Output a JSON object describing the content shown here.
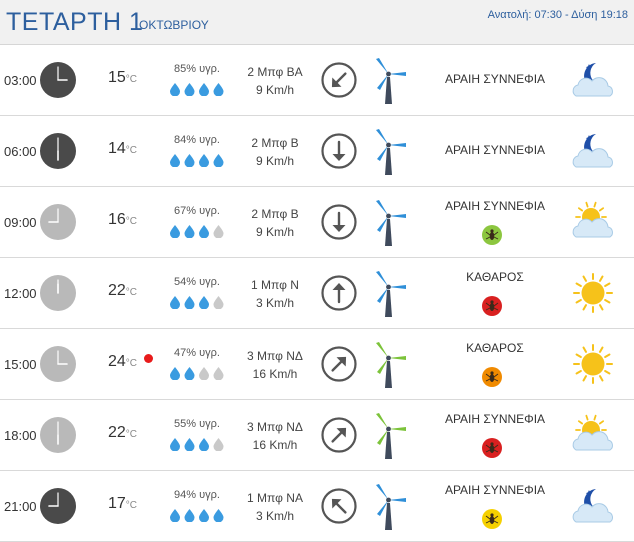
{
  "header": {
    "day": "ΤΕΤΑΡΤΗ 1",
    "month": "ΟΚΤΩΒΡΙΟΥ",
    "sun_times": "Ανατολή: 07:30 - Δύση 19:18"
  },
  "temp_unit": "°C",
  "rows": [
    {
      "time": "03:00",
      "clock": "night",
      "temp": "15",
      "humidity": "85% υγρ.",
      "drops": 4,
      "wind_force": "2 Μπφ ΒΑ",
      "wind_speed": "9 Km/h",
      "arrow_deg": 225,
      "turbine": "blue",
      "sky": "ΑΡΑΙΗ ΣΥΝΝΕΦΙΑ",
      "bug": null,
      "icon": "moon-cloud-icon",
      "hot": false
    },
    {
      "time": "06:00",
      "clock": "night",
      "temp": "14",
      "humidity": "84% υγρ.",
      "drops": 4,
      "wind_force": "2 Μπφ Β",
      "wind_speed": "9 Km/h",
      "arrow_deg": 180,
      "turbine": "blue",
      "sky": "ΑΡΑΙΗ ΣΥΝΝΕΦΙΑ",
      "bug": null,
      "icon": "moon-cloud-icon",
      "hot": false
    },
    {
      "time": "09:00",
      "clock": "day",
      "temp": "16",
      "humidity": "67% υγρ.",
      "drops": 3,
      "wind_force": "2 Μπφ Β",
      "wind_speed": "9 Km/h",
      "arrow_deg": 180,
      "turbine": "blue",
      "sky": "ΑΡΑΙΗ ΣΥΝΝΕΦΙΑ",
      "bug": "green",
      "icon": "sun-cloud-icon",
      "hot": false
    },
    {
      "time": "12:00",
      "clock": "day",
      "temp": "22",
      "humidity": "54% υγρ.",
      "drops": 3,
      "wind_force": "1 Μπφ Ν",
      "wind_speed": "3 Km/h",
      "arrow_deg": 0,
      "turbine": "blue",
      "sky": "ΚΑΘΑΡΟΣ",
      "bug": "red",
      "icon": "sun-icon",
      "hot": false
    },
    {
      "time": "15:00",
      "clock": "day",
      "temp": "24",
      "humidity": "47% υγρ.",
      "drops": 2,
      "wind_force": "3 Μπφ ΝΔ",
      "wind_speed": "16 Km/h",
      "arrow_deg": 45,
      "turbine": "green",
      "sky": "ΚΑΘΑΡΟΣ",
      "bug": "orange",
      "icon": "sun-icon",
      "hot": true
    },
    {
      "time": "18:00",
      "clock": "day",
      "temp": "22",
      "humidity": "55% υγρ.",
      "drops": 3,
      "wind_force": "3 Μπφ ΝΔ",
      "wind_speed": "16 Km/h",
      "arrow_deg": 45,
      "turbine": "green",
      "sky": "ΑΡΑΙΗ ΣΥΝΝΕΦΙΑ",
      "bug": "red",
      "icon": "sun-cloud-icon",
      "hot": false
    },
    {
      "time": "21:00",
      "clock": "night",
      "temp": "17",
      "humidity": "94% υγρ.",
      "drops": 4,
      "wind_force": "1 Μπφ ΝΑ",
      "wind_speed": "3 Km/h",
      "arrow_deg": 315,
      "turbine": "blue",
      "sky": "ΑΡΑΙΗ ΣΥΝΝΕΦΙΑ",
      "bug": "yellow",
      "icon": "moon-cloud-icon",
      "hot": false
    }
  ],
  "colors": {
    "accent": "#2d5f9e",
    "drop": "#3a9be0",
    "drop_empty": "#c9c9c9",
    "clock_night": "#4a4a4a",
    "clock_day": "#b9b9b9",
    "arrow": "#555555",
    "turbine_blue": "#2f8fd8",
    "turbine_green": "#7cc33a",
    "turbine_mast": "#3f4a5c",
    "bug_green": "#8cc63f",
    "bug_red": "#d92020",
    "bug_orange": "#f08a00",
    "bug_yellow": "#f5d000",
    "sun": "#f6c21a",
    "cloud": "#d7e9f7",
    "moon": "#1f4fa8"
  }
}
